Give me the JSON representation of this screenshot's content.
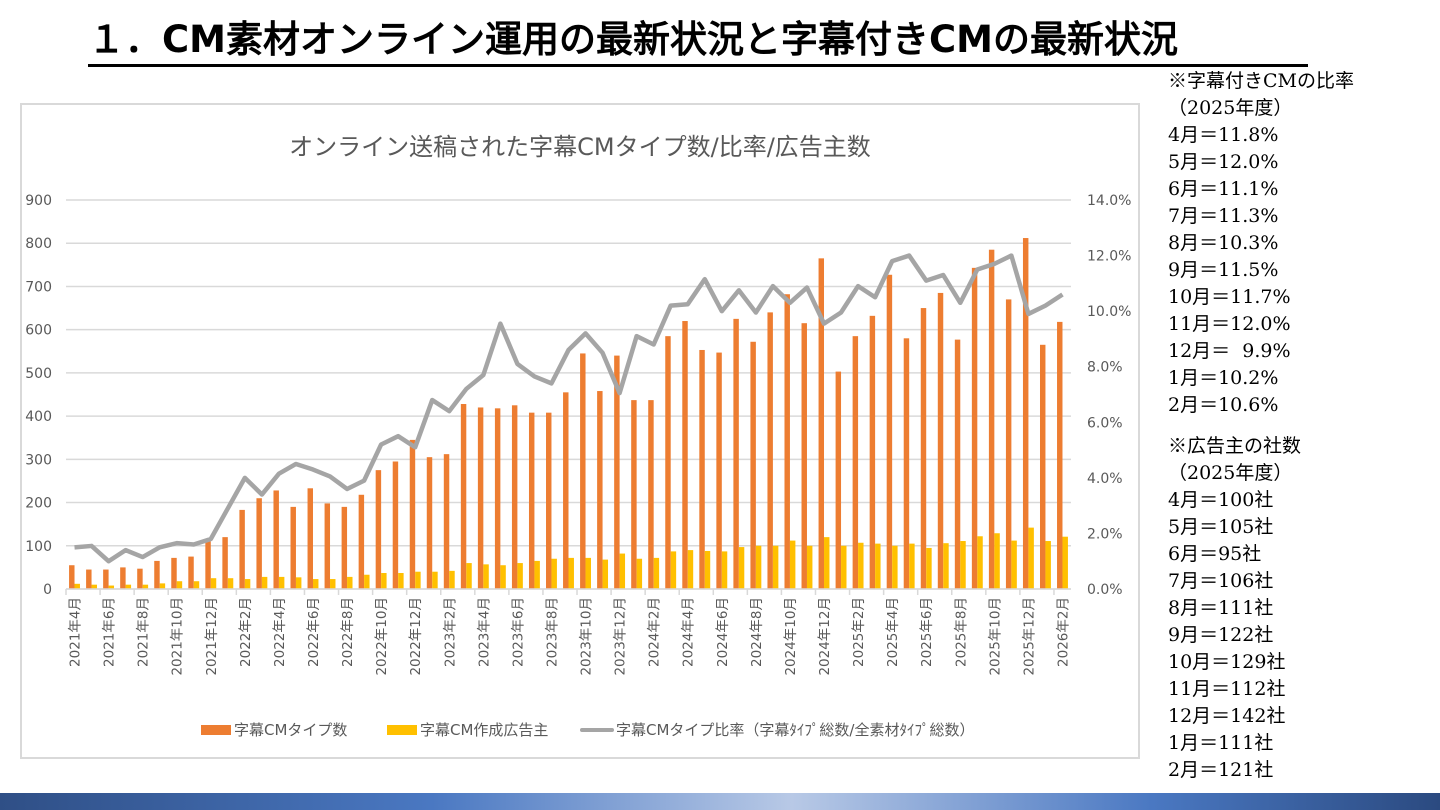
{
  "page": {
    "title": "１．CM素材オンライン運用の最新状況と字幕付きCMの最新状況"
  },
  "side_notes": {
    "ratio": {
      "heading": "※字幕付きCMの比率",
      "period": "（2025年度）",
      "rows": [
        "4月＝11.8%",
        "5月＝12.0%",
        "6月＝11.1%",
        "7月＝11.3%",
        "8月＝10.3%",
        "9月＝11.5%",
        "10月＝11.7%",
        "11月＝12.0%",
        "12月＝  9.9%",
        "1月＝10.2%",
        "2月＝10.6%"
      ]
    },
    "advertisers": {
      "heading": "※広告主の社数",
      "period": "（2025年度）",
      "rows": [
        "4月＝100社",
        "5月＝105社",
        "6月＝95社",
        "7月＝106社",
        "8月＝111社",
        "9月＝122社",
        "10月＝129社",
        "11月＝112社",
        "12月＝142社",
        "1月＝111社",
        "2月＝121社"
      ]
    }
  },
  "colors": {
    "bar_types": "#ed7d31",
    "bar_advertisers": "#ffc000",
    "line_ratio": "#a5a5a5",
    "grid": "#d9d9d9",
    "axis_text": "#595959"
  },
  "chart_data": {
    "type": "bar",
    "title": "オンライン送稿された字幕CMタイプ数/比率/広告主数",
    "xlabel": "",
    "ylabel": "",
    "ylim": [
      0,
      900
    ],
    "y_ticks": [
      "0",
      "100",
      "200",
      "300",
      "400",
      "500",
      "600",
      "700",
      "800",
      "900"
    ],
    "y2lim": [
      0,
      14
    ],
    "y2_ticks": [
      "0.0%",
      "2.0%",
      "4.0%",
      "6.0%",
      "8.0%",
      "10.0%",
      "12.0%",
      "14.0%"
    ],
    "grid": true,
    "legend_position": "bottom",
    "categories": [
      "2021年4月",
      "2021年5月",
      "2021年6月",
      "2021年7月",
      "2021年8月",
      "2021年9月",
      "2021年10月",
      "2021年11月",
      "2021年12月",
      "2022年1月",
      "2022年2月",
      "2022年3月",
      "2022年4月",
      "2022年5月",
      "2022年6月",
      "2022年7月",
      "2022年8月",
      "2022年9月",
      "2022年10月",
      "2022年11月",
      "2022年12月",
      "2023年1月",
      "2023年2月",
      "2023年3月",
      "2023年4月",
      "2023年5月",
      "2023年6月",
      "2023年7月",
      "2023年8月",
      "2023年9月",
      "2023年10月",
      "2023年11月",
      "2023年12月",
      "2024年1月",
      "2024年2月",
      "2024年3月",
      "2024年4月",
      "2024年5月",
      "2024年6月",
      "2024年7月",
      "2024年8月",
      "2024年9月",
      "2024年10月",
      "2024年11月",
      "2024年12月",
      "2025年1月",
      "2025年2月",
      "2025年3月",
      "2025年4月",
      "2025年5月",
      "2025年6月",
      "2025年7月",
      "2025年8月",
      "2025年9月",
      "2025年10月",
      "2025年11月",
      "2025年12月",
      "2026年1月",
      "2026年2月"
    ],
    "x_tick_labels": [
      "2021年4月",
      "2021年6月",
      "2021年8月",
      "2021年10月",
      "2021年12月",
      "2022年2月",
      "2022年4月",
      "2022年6月",
      "2022年8月",
      "2022年10月",
      "2022年12月",
      "2023年2月",
      "2023年4月",
      "2023年6月",
      "2023年8月",
      "2023年10月",
      "2023年12月",
      "2024年2月",
      "2024年4月",
      "2024年6月",
      "2024年8月",
      "2024年10月",
      "2024年12月",
      "2025年2月",
      "2025年4月",
      "2025年6月",
      "2025年8月",
      "2025年10月",
      "2025年12月",
      "2026年2月"
    ],
    "series": [
      {
        "name": "字幕CMタイプ数",
        "type": "bar",
        "axis": "left",
        "values": [
          55,
          45,
          45,
          50,
          47,
          65,
          72,
          75,
          110,
          120,
          183,
          210,
          228,
          190,
          233,
          198,
          190,
          218,
          275,
          295,
          345,
          305,
          312,
          428,
          420,
          418,
          425,
          408,
          408,
          455,
          545,
          458,
          540,
          437,
          437,
          585,
          620,
          553,
          547,
          625,
          572,
          640,
          682,
          615,
          765,
          503,
          585,
          632,
          727,
          580,
          650,
          685,
          577,
          743,
          785,
          670,
          812,
          565,
          618
        ]
      },
      {
        "name": "字幕CM作成広告主",
        "type": "bar",
        "axis": "left",
        "values": [
          12,
          10,
          8,
          10,
          10,
          13,
          18,
          18,
          25,
          25,
          23,
          28,
          28,
          27,
          23,
          23,
          28,
          33,
          37,
          37,
          40,
          40,
          42,
          60,
          57,
          55,
          60,
          65,
          70,
          72,
          72,
          68,
          82,
          70,
          72,
          87,
          90,
          88,
          87,
          97,
          100,
          100,
          112,
          100,
          120,
          100,
          107,
          105,
          100,
          105,
          95,
          106,
          111,
          122,
          129,
          112,
          142,
          111,
          121
        ]
      },
      {
        "name": "字幕CMタイプ比率（字幕ﾀｲﾌﾟ総数/全素材ﾀｲﾌﾟ総数）",
        "type": "line",
        "axis": "right",
        "unit": "%",
        "values": [
          1.5,
          1.55,
          1.0,
          1.4,
          1.15,
          1.5,
          1.65,
          1.6,
          1.8,
          2.9,
          4.0,
          3.4,
          4.15,
          4.5,
          4.3,
          4.05,
          3.6,
          3.9,
          5.2,
          5.5,
          5.1,
          6.8,
          6.4,
          7.2,
          7.7,
          9.55,
          8.1,
          7.65,
          7.4,
          8.6,
          9.2,
          8.5,
          7.05,
          9.1,
          8.8,
          10.2,
          10.25,
          11.15,
          10.0,
          10.75,
          9.95,
          10.9,
          10.3,
          10.85,
          9.55,
          9.95,
          10.9,
          10.5,
          11.8,
          12.0,
          11.1,
          11.3,
          10.3,
          11.5,
          11.7,
          12.0,
          9.9,
          10.2,
          10.6
        ]
      }
    ]
  }
}
